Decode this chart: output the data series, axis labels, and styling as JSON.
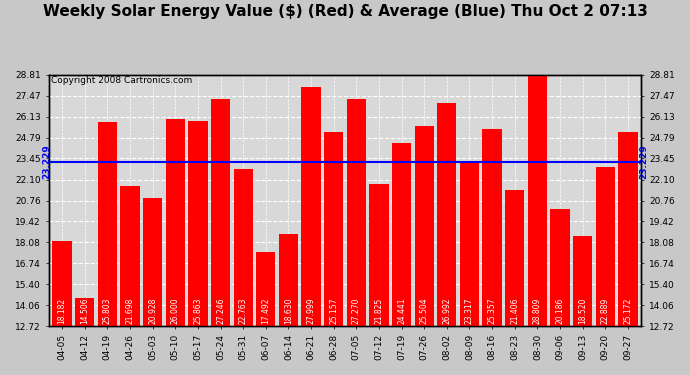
{
  "title": "Weekly Solar Energy Value ($) (Red) & Average (Blue) Thu Oct 2 07:13",
  "copyright": "Copyright 2008 Cartronics.com",
  "categories": [
    "04-05",
    "04-12",
    "04-19",
    "04-26",
    "05-03",
    "05-10",
    "05-17",
    "05-24",
    "05-31",
    "06-07",
    "06-14",
    "06-21",
    "06-28",
    "07-05",
    "07-12",
    "07-19",
    "07-26",
    "08-02",
    "08-09",
    "08-16",
    "08-23",
    "08-30",
    "09-06",
    "09-13",
    "09-20",
    "09-27"
  ],
  "values": [
    18.182,
    14.506,
    25.803,
    21.698,
    20.928,
    26.0,
    25.863,
    27.246,
    22.763,
    17.492,
    18.63,
    27.999,
    25.157,
    27.27,
    21.825,
    24.441,
    25.504,
    26.992,
    23.317,
    25.357,
    21.406,
    28.809,
    20.186,
    18.52,
    22.889,
    25.172
  ],
  "average": 23.229,
  "average_label": "23.229",
  "bar_color": "#ff0000",
  "avg_line_color": "#0000ff",
  "background_color": "#c8c8c8",
  "plot_bg_color": "#d8d8d8",
  "grid_color": "#ffffff",
  "yticks": [
    12.72,
    14.06,
    15.4,
    16.74,
    18.08,
    19.42,
    20.76,
    22.1,
    23.45,
    24.79,
    26.13,
    27.47,
    28.81
  ],
  "ymin": 12.72,
  "ymax": 28.81,
  "title_fontsize": 11,
  "copyright_fontsize": 6.5,
  "bar_label_fontsize": 5.5,
  "tick_fontsize": 6.5,
  "avg_label_fontsize": 6.5
}
